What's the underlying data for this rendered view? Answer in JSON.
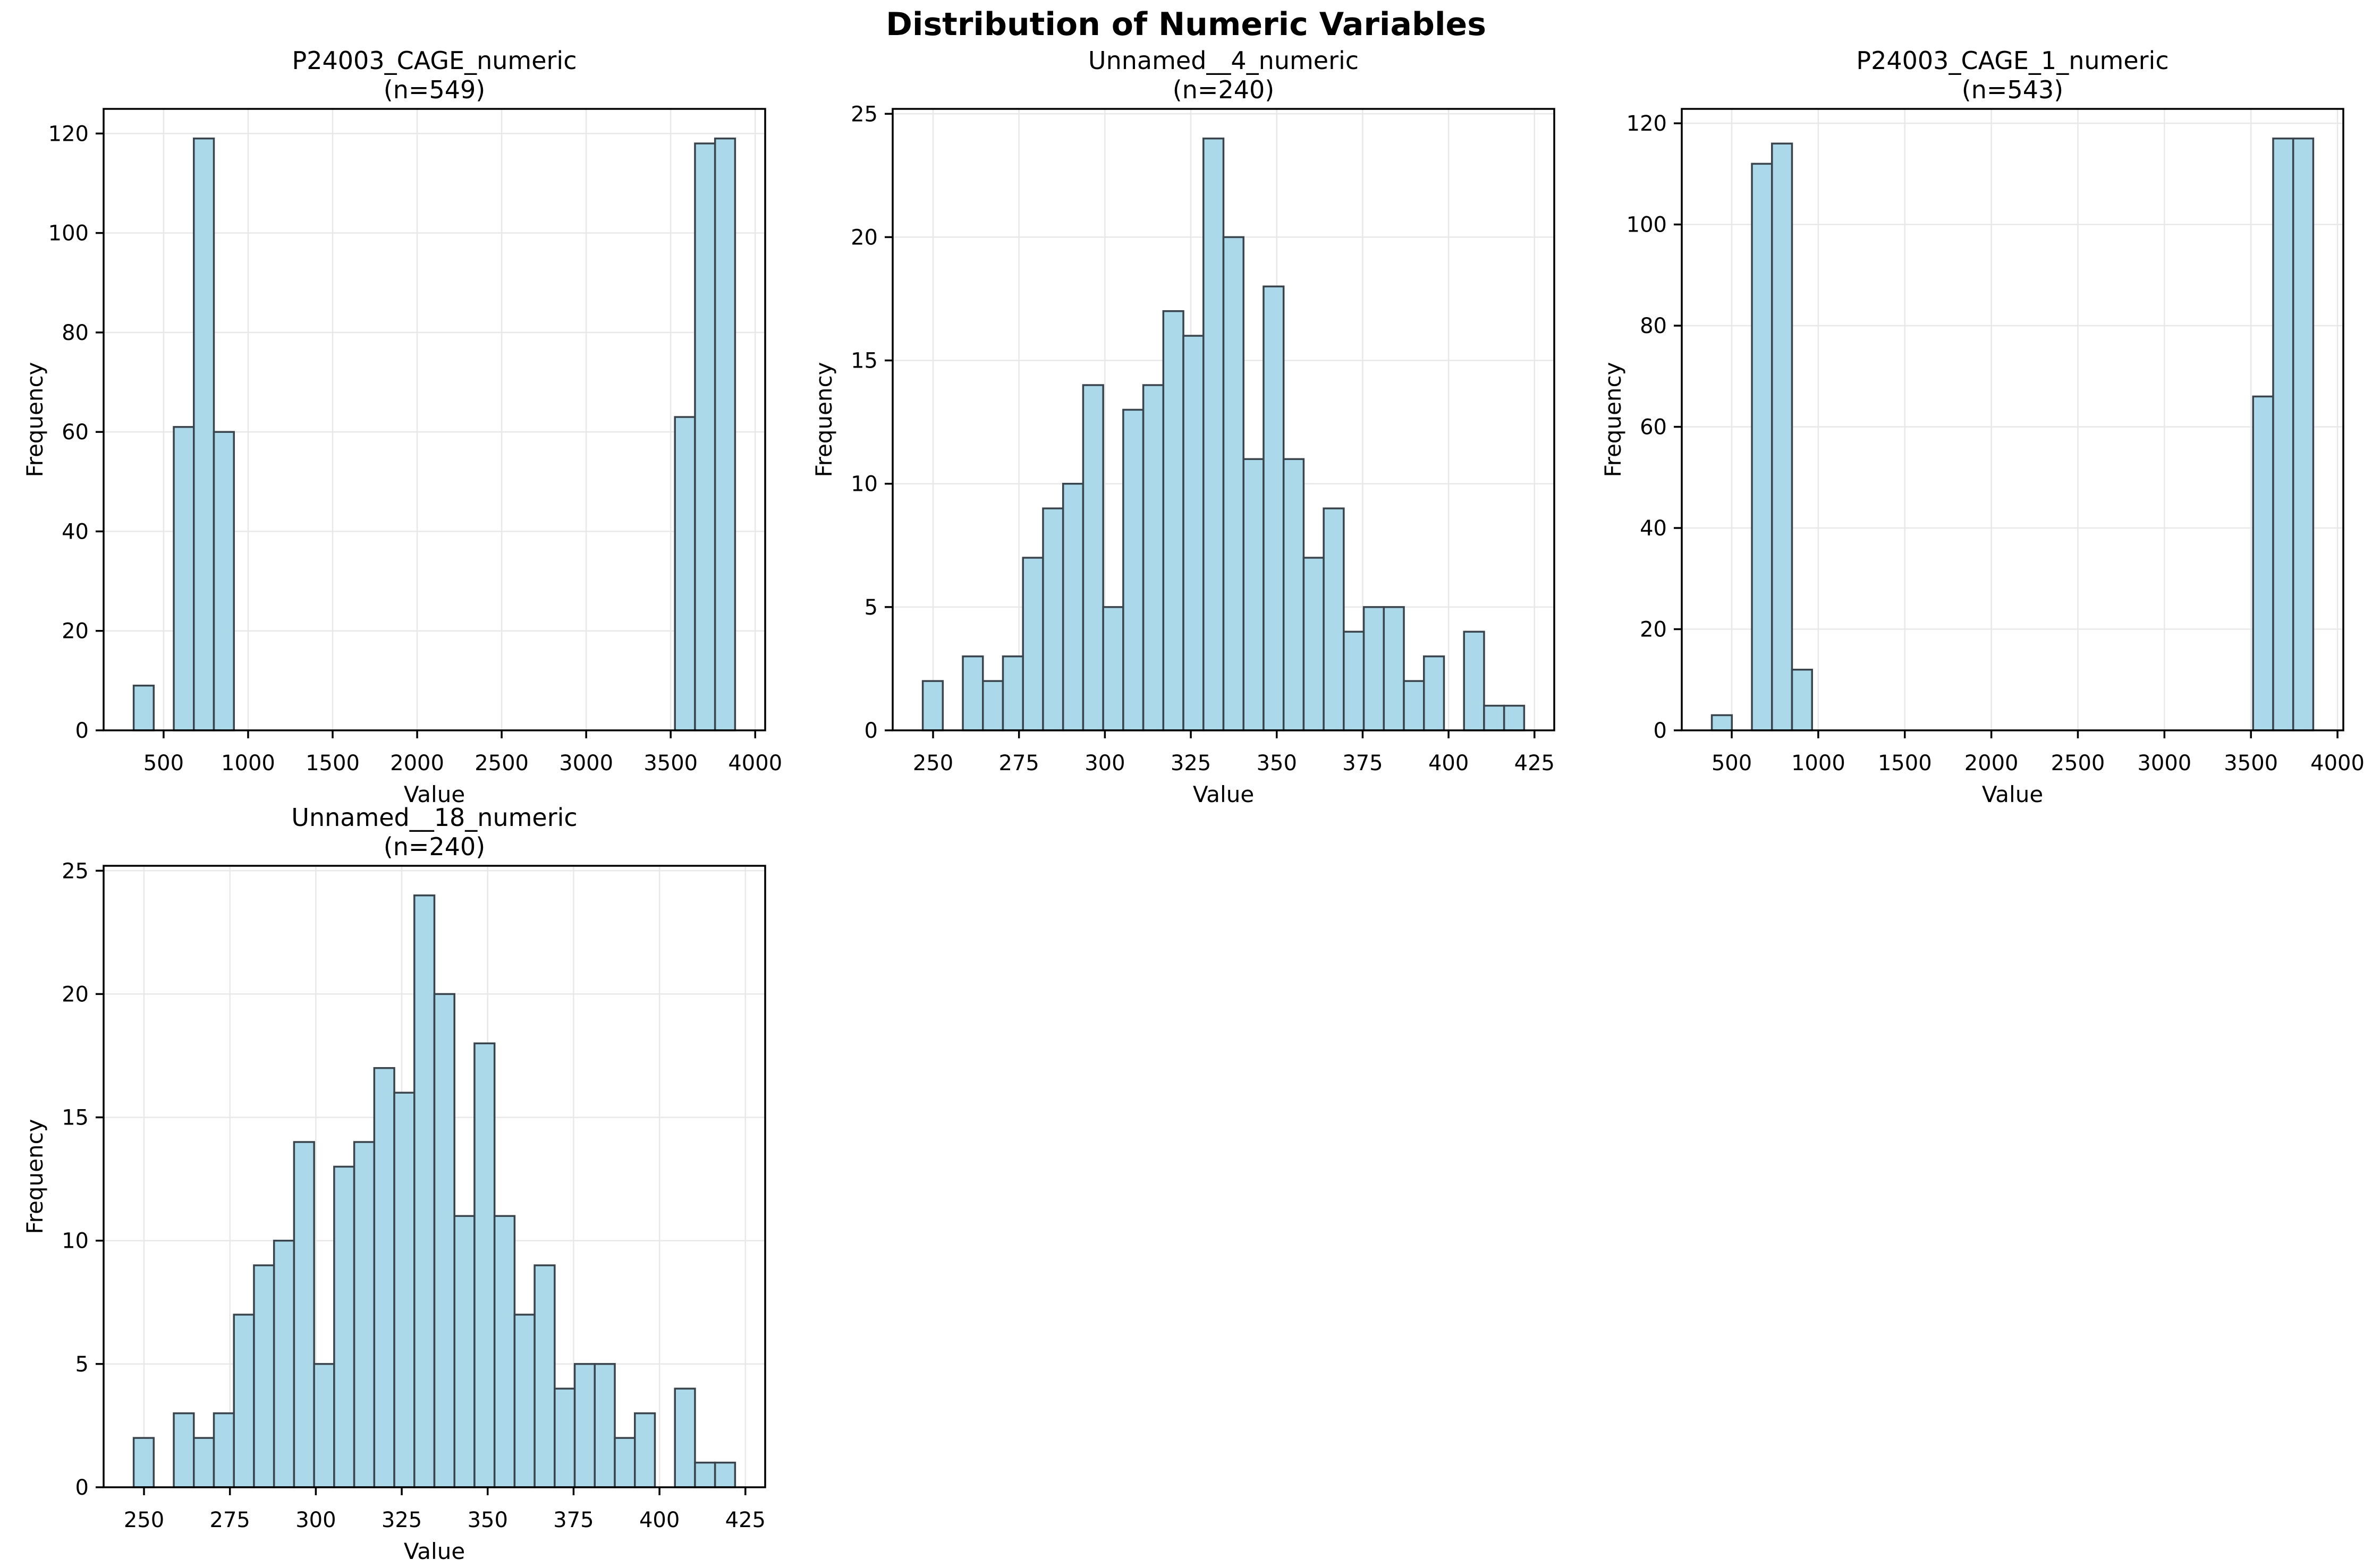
{
  "figure": {
    "title": "Distribution of Numeric Variables",
    "background": "#ffffff",
    "bar_fill": "#ABD9EA",
    "bar_edge": "#3A444C",
    "grid_color": "#E8E8E8",
    "spine_color": "#000000",
    "text_color": "#000000"
  },
  "chart_data": [
    {
      "type": "bar",
      "title": "P24003_CAGE_numeric",
      "subtitle": "(n=549)",
      "n": 549,
      "xlabel": "Value",
      "ylabel": "Frequency",
      "grid": true,
      "legend": "none",
      "bin_start": 323,
      "bin_width": 118.6,
      "counts": [
        9,
        0,
        61,
        119,
        60,
        0,
        0,
        0,
        0,
        0,
        0,
        0,
        0,
        0,
        0,
        0,
        0,
        0,
        0,
        0,
        0,
        0,
        0,
        0,
        0,
        0,
        0,
        63,
        118,
        119
      ],
      "xlim": [
        145.1,
        4058.9
      ],
      "ylim": [
        0,
        124.95
      ],
      "xticks": [
        500,
        1000,
        1500,
        2000,
        2500,
        3000,
        3500,
        4000
      ],
      "yticks": [
        0,
        20,
        40,
        60,
        80,
        100,
        120
      ]
    },
    {
      "type": "bar",
      "title": "Unnamed__4_numeric",
      "subtitle": "(n=240)",
      "n": 240,
      "xlabel": "Value",
      "ylabel": "Frequency",
      "grid": true,
      "legend": "none",
      "bin_start": 247,
      "bin_width": 5.8333,
      "counts": [
        2,
        0,
        3,
        2,
        3,
        7,
        9,
        10,
        14,
        5,
        13,
        14,
        17,
        16,
        24,
        20,
        11,
        18,
        11,
        7,
        9,
        4,
        5,
        5,
        2,
        3,
        0,
        4,
        1,
        1
      ],
      "xlim": [
        238.25,
        430.75
      ],
      "ylim": [
        0,
        25.2
      ],
      "xticks": [
        250,
        275,
        300,
        325,
        350,
        375,
        400,
        425
      ],
      "yticks": [
        0,
        5,
        10,
        15,
        20,
        25
      ]
    },
    {
      "type": "bar",
      "title": "P24003_CAGE_1_numeric",
      "subtitle": "(n=543)",
      "n": 543,
      "xlabel": "Value",
      "ylabel": "Frequency",
      "grid": true,
      "legend": "none",
      "bin_start": 385,
      "bin_width": 115.83,
      "counts": [
        3,
        0,
        112,
        116,
        12,
        0,
        0,
        0,
        0,
        0,
        0,
        0,
        0,
        0,
        0,
        0,
        0,
        0,
        0,
        0,
        0,
        0,
        0,
        0,
        0,
        0,
        0,
        66,
        117,
        117
      ],
      "xlim": [
        211.3,
        4033.6
      ],
      "ylim": [
        0,
        122.85
      ],
      "xticks": [
        500,
        1000,
        1500,
        2000,
        2500,
        3000,
        3500,
        4000
      ],
      "yticks": [
        0,
        20,
        40,
        60,
        80,
        100,
        120
      ]
    },
    {
      "type": "bar",
      "title": "Unnamed__18_numeric",
      "subtitle": "(n=240)",
      "n": 240,
      "xlabel": "Value",
      "ylabel": "Frequency",
      "grid": true,
      "legend": "none",
      "bin_start": 247,
      "bin_width": 5.8333,
      "counts": [
        2,
        0,
        3,
        2,
        3,
        7,
        9,
        10,
        14,
        5,
        13,
        14,
        17,
        16,
        24,
        20,
        11,
        18,
        11,
        7,
        9,
        4,
        5,
        5,
        2,
        3,
        0,
        4,
        1,
        1
      ],
      "xlim": [
        238.25,
        430.75
      ],
      "ylim": [
        0,
        25.2
      ],
      "xticks": [
        250,
        275,
        300,
        325,
        350,
        375,
        400,
        425
      ],
      "yticks": [
        0,
        5,
        10,
        15,
        20,
        25
      ]
    }
  ]
}
